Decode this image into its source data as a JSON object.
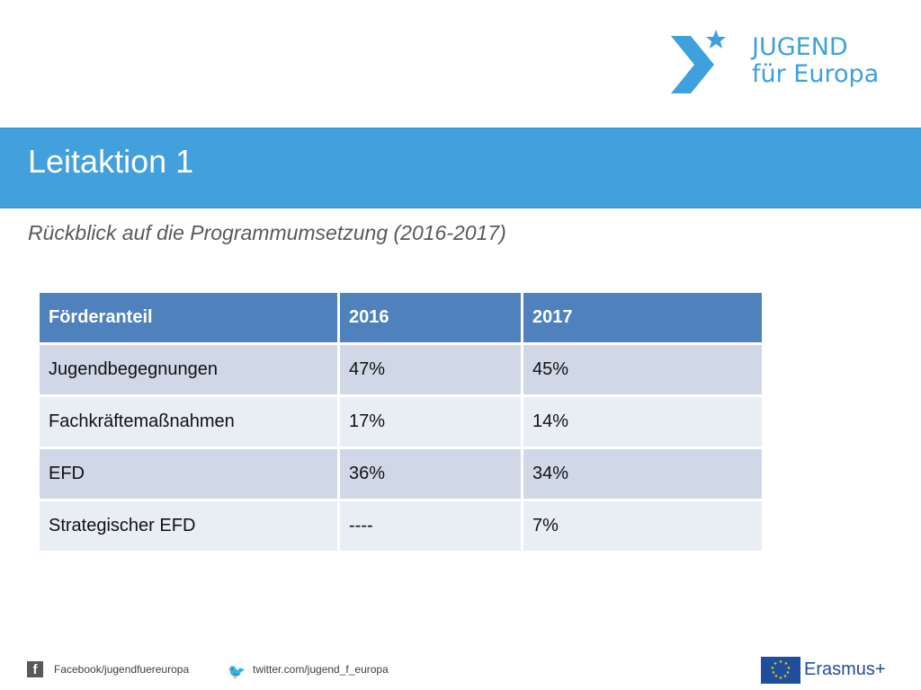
{
  "logo": {
    "line1": "JUGEND",
    "line2": "für Europa",
    "colors": {
      "brand": "#3ea0dc"
    }
  },
  "banner": {
    "title": "Leitaktion 1",
    "color": "#42a0dd"
  },
  "subtitle": "Rückblick auf die Programmumsetzung (2016-2017)",
  "table": {
    "headers": [
      "Förderanteil",
      "2016",
      "2017"
    ],
    "rows": [
      [
        "Jugendbegegnungen",
        "47%",
        "45%"
      ],
      [
        "Fachkräftemaßnahmen",
        "17%",
        "14%"
      ],
      [
        "EFD",
        "36%",
        "34%"
      ],
      [
        "Strategischer EFD",
        "----",
        "7%"
      ]
    ]
  },
  "footer": {
    "facebook": "Facebook/jugendfuereuropa",
    "twitter": "twitter.com/jugend_f_europa",
    "erasmus": "Erasmus+",
    "icons": [
      "facebook-icon",
      "twitter-icon",
      "eu-flag-icon"
    ]
  }
}
